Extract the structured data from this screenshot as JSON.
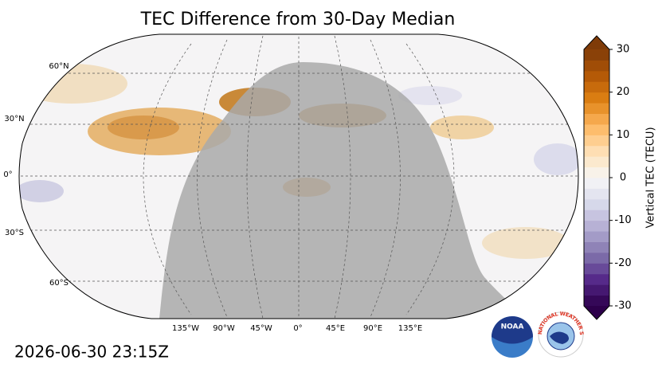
{
  "title": "TEC Difference from 30-Day Median",
  "map": {
    "lat_labels": [
      "60°N",
      "30°N",
      "0°",
      "30°S",
      "60°S"
    ],
    "lon_labels": [
      "135°W",
      "90°W",
      "45°W",
      "0°",
      "45°E",
      "90°E",
      "135°E"
    ]
  },
  "colorbar": {
    "label": "Vertical TEC (TECU)",
    "lim": [
      -30,
      30
    ],
    "ticks": [
      -30,
      -20,
      -10,
      0,
      10,
      20,
      30
    ],
    "colors": [
      "#2d004b",
      "#542788",
      "#8073ac",
      "#b2abd2",
      "#d8daeb",
      "#f7f7f7",
      "#fee0b6",
      "#fdb863",
      "#e08214",
      "#b35806",
      "#7f3b08"
    ]
  },
  "timestamp": "2026-06-30 23:15Z",
  "logos": {
    "noaa": "NOAA",
    "nws": "NATIONAL WEATHER SERVICE"
  }
}
